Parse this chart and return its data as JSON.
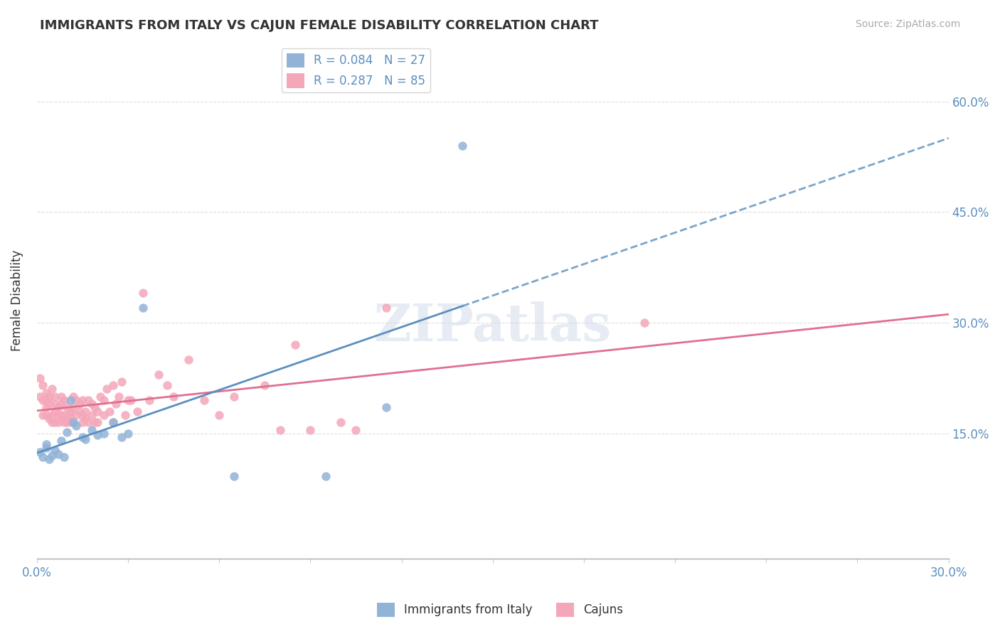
{
  "title": "IMMIGRANTS FROM ITALY VS CAJUN FEMALE DISABILITY CORRELATION CHART",
  "source": "Source: ZipAtlas.com",
  "ylabel_label": "Female Disability",
  "xlim": [
    0.0,
    0.3
  ],
  "ylim": [
    -0.02,
    0.68
  ],
  "xticks": [
    0.0,
    0.03,
    0.06,
    0.09,
    0.12,
    0.15,
    0.18,
    0.21,
    0.24,
    0.27,
    0.3
  ],
  "yticks": [
    0.15,
    0.3,
    0.45,
    0.6
  ],
  "ytick_labels": [
    "15.0%",
    "30.0%",
    "45.0%",
    "60.0%"
  ],
  "xtick_labels": [
    "0.0%",
    "",
    "",
    "",
    "",
    "",
    "",
    "",
    "",
    "",
    "30.0%"
  ],
  "watermark": "ZIPatlas",
  "blue_color": "#91b3d7",
  "pink_color": "#f4a7b9",
  "blue_line_color": "#5b8fbf",
  "pink_line_color": "#e07090",
  "legend_blue_label": "R = 0.084   N = 27",
  "legend_pink_label": "R = 0.287   N = 85",
  "blue_scatter_x": [
    0.001,
    0.002,
    0.003,
    0.003,
    0.004,
    0.005,
    0.006,
    0.007,
    0.008,
    0.009,
    0.01,
    0.011,
    0.012,
    0.013,
    0.015,
    0.016,
    0.018,
    0.02,
    0.022,
    0.025,
    0.028,
    0.03,
    0.035,
    0.065,
    0.095,
    0.115,
    0.14
  ],
  "blue_scatter_y": [
    0.125,
    0.118,
    0.13,
    0.135,
    0.115,
    0.12,
    0.128,
    0.122,
    0.14,
    0.118,
    0.152,
    0.195,
    0.165,
    0.16,
    0.145,
    0.142,
    0.155,
    0.148,
    0.15,
    0.165,
    0.145,
    0.15,
    0.32,
    0.092,
    0.092,
    0.185,
    0.54
  ],
  "pink_scatter_x": [
    0.001,
    0.001,
    0.002,
    0.002,
    0.002,
    0.003,
    0.003,
    0.003,
    0.003,
    0.004,
    0.004,
    0.004,
    0.005,
    0.005,
    0.005,
    0.006,
    0.006,
    0.006,
    0.006,
    0.007,
    0.007,
    0.007,
    0.008,
    0.008,
    0.008,
    0.009,
    0.009,
    0.009,
    0.01,
    0.01,
    0.01,
    0.011,
    0.011,
    0.011,
    0.012,
    0.012,
    0.012,
    0.013,
    0.013,
    0.014,
    0.014,
    0.015,
    0.015,
    0.015,
    0.016,
    0.016,
    0.017,
    0.017,
    0.018,
    0.018,
    0.019,
    0.019,
    0.02,
    0.02,
    0.021,
    0.022,
    0.022,
    0.023,
    0.024,
    0.025,
    0.025,
    0.026,
    0.027,
    0.028,
    0.029,
    0.03,
    0.031,
    0.033,
    0.035,
    0.037,
    0.04,
    0.043,
    0.045,
    0.05,
    0.055,
    0.06,
    0.065,
    0.075,
    0.08,
    0.085,
    0.09,
    0.1,
    0.105,
    0.115,
    0.2
  ],
  "pink_scatter_y": [
    0.2,
    0.225,
    0.175,
    0.195,
    0.215,
    0.185,
    0.195,
    0.205,
    0.175,
    0.19,
    0.17,
    0.2,
    0.165,
    0.175,
    0.21,
    0.18,
    0.19,
    0.2,
    0.165,
    0.175,
    0.185,
    0.165,
    0.175,
    0.19,
    0.2,
    0.165,
    0.175,
    0.195,
    0.17,
    0.185,
    0.165,
    0.18,
    0.165,
    0.175,
    0.2,
    0.185,
    0.165,
    0.195,
    0.175,
    0.18,
    0.19,
    0.175,
    0.165,
    0.195,
    0.17,
    0.18,
    0.195,
    0.165,
    0.19,
    0.175,
    0.165,
    0.185,
    0.18,
    0.165,
    0.2,
    0.175,
    0.195,
    0.21,
    0.18,
    0.165,
    0.215,
    0.19,
    0.2,
    0.22,
    0.175,
    0.195,
    0.195,
    0.18,
    0.34,
    0.195,
    0.23,
    0.215,
    0.2,
    0.25,
    0.195,
    0.175,
    0.2,
    0.215,
    0.155,
    0.27,
    0.155,
    0.165,
    0.155,
    0.32,
    0.3
  ]
}
